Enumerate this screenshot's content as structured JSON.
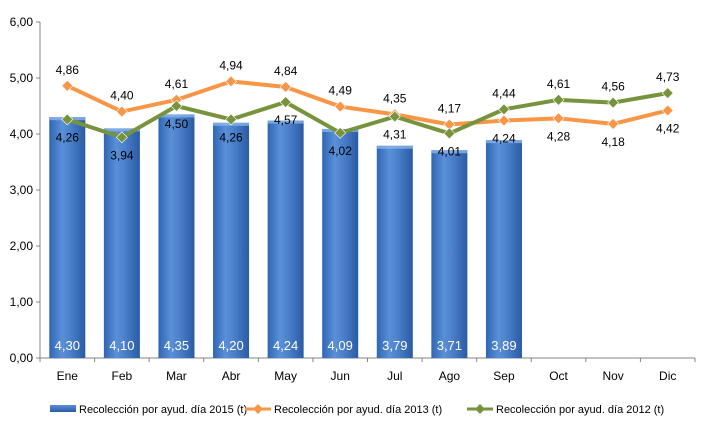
{
  "chart_data": {
    "type": "bar",
    "categories": [
      "Ene",
      "Feb",
      "Mar",
      "Abr",
      "May",
      "Jun",
      "Jul",
      "Ago",
      "Sep",
      "Oct",
      "Nov",
      "Dic"
    ],
    "y_ticks": [
      "0,00",
      "1,00",
      "2,00",
      "3,00",
      "4,00",
      "5,00",
      "6,00"
    ],
    "ylim": [
      0,
      6
    ],
    "grid": false,
    "legend_position": "bottom",
    "series": [
      {
        "name": "Recolección por ayud. día 2015 (t)",
        "kind": "bar",
        "color": "#4a7ec9",
        "values": [
          4.3,
          4.1,
          4.35,
          4.2,
          4.24,
          4.09,
          3.79,
          3.71,
          3.89,
          null,
          null,
          null
        ],
        "labels": [
          "4,30",
          "4,10",
          "4,35",
          "4,20",
          "4,24",
          "4,09",
          "3,79",
          "3,71",
          "3,89",
          null,
          null,
          null
        ]
      },
      {
        "name": "Recolección por ayud. día 2013 (t)",
        "kind": "line",
        "color": "#f79646",
        "values": [
          4.86,
          4.4,
          4.61,
          4.94,
          4.84,
          4.49,
          4.35,
          4.17,
          4.24,
          4.28,
          4.18,
          4.42
        ],
        "labels": [
          "4,86",
          "4,40",
          "4,61",
          "4,94",
          "4,84",
          "4,49",
          "4,35",
          "4,17",
          "4,24",
          "4,28",
          "4,18",
          "4,42"
        ]
      },
      {
        "name": "Recolección por ayud. día 2012 (t)",
        "kind": "line",
        "color": "#77933c",
        "values": [
          4.26,
          3.94,
          4.5,
          4.26,
          4.57,
          4.02,
          4.31,
          4.01,
          4.44,
          4.61,
          4.56,
          4.73
        ],
        "labels": [
          "4,26",
          "3,94",
          "4,50",
          "4,26",
          "4,57",
          "4,02",
          "4,31",
          "4,01",
          "4,44",
          "4,61",
          "4,56",
          "4,73"
        ]
      }
    ]
  }
}
